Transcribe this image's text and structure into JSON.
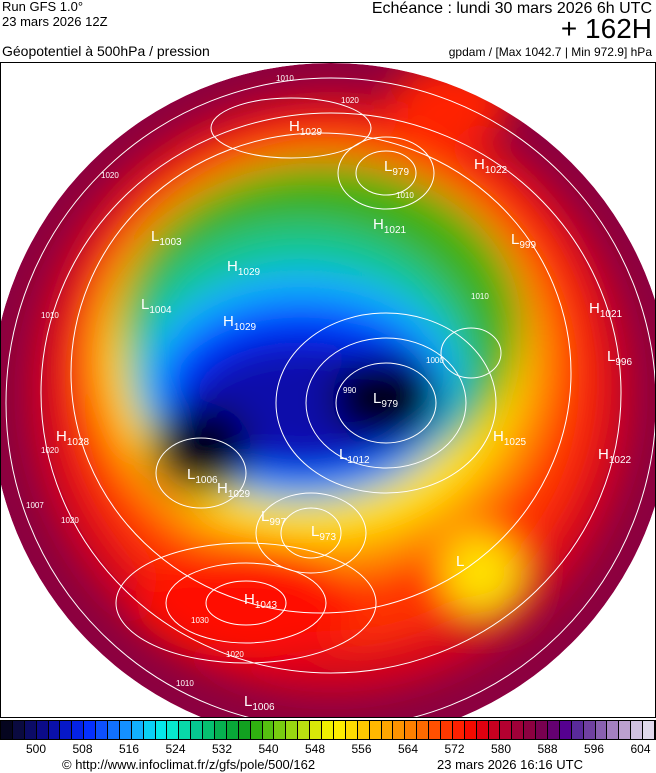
{
  "header": {
    "run": "Run GFS 1.0°",
    "run_date": "23 mars 2026 12Z",
    "parameter": "Géopotentiel à 500hPa / pression",
    "echeance": "Echéance : lundi 30 mars 2026 6h UTC",
    "lead_time": "+ 162H",
    "units": "gpdam / [Max 1042.7 | Min 972.9] hPa"
  },
  "map": {
    "projection": "polar",
    "pressure_centers": [
      {
        "type": "H",
        "value": "1029"
      },
      {
        "type": "L",
        "value": "979"
      },
      {
        "type": "H",
        "value": "1022"
      },
      {
        "type": "L",
        "value": "1003"
      },
      {
        "type": "H",
        "value": "1021"
      },
      {
        "type": "L",
        "value": "999"
      },
      {
        "type": "H",
        "value": "1029"
      },
      {
        "type": "L",
        "value": "1004"
      },
      {
        "type": "H",
        "value": "1029"
      },
      {
        "type": "H",
        "value": "1021"
      },
      {
        "type": "L",
        "value": "996"
      },
      {
        "type": "L",
        "value": "979"
      },
      {
        "type": "H",
        "value": "1025"
      },
      {
        "type": "H",
        "value": "1022"
      },
      {
        "type": "L",
        "value": "1012"
      },
      {
        "type": "H",
        "value": "1028"
      },
      {
        "type": "L",
        "value": "1006"
      },
      {
        "type": "H",
        "value": "1029"
      },
      {
        "type": "L",
        "value": "997"
      },
      {
        "type": "L",
        "value": "973"
      },
      {
        "type": "H",
        "value": "1043"
      },
      {
        "type": "L",
        "value": "1006"
      },
      {
        "type": "L",
        "value": ""
      }
    ],
    "isobar_labels": [
      "1010",
      "1020",
      "1010",
      "1010",
      "1020",
      "1010",
      "1020",
      "1007",
      "1020",
      "1010",
      "1030",
      "1020",
      "1010",
      "1000",
      "990"
    ]
  },
  "colorbar": {
    "ticks": [
      "500",
      "508",
      "516",
      "524",
      "532",
      "540",
      "548",
      "556",
      "564",
      "572",
      "580",
      "588",
      "596",
      "604"
    ],
    "colors": [
      "#05051f",
      "#0a0a40",
      "#0b0b66",
      "#0b0b88",
      "#0a10aa",
      "#0618c8",
      "#0422e6",
      "#0530ff",
      "#0d50ff",
      "#1170ff",
      "#1490ff",
      "#12b0ff",
      "#0ad0f5",
      "#05e8e8",
      "#06e8cc",
      "#08d8a8",
      "#06c890",
      "#06c070",
      "#06b050",
      "#08a838",
      "#12a020",
      "#30b010",
      "#55c010",
      "#78cc10",
      "#98d810",
      "#b8e010",
      "#d8e808",
      "#f0f000",
      "#ffee00",
      "#ffdc00",
      "#ffca00",
      "#ffb800",
      "#ffa600",
      "#ff9400",
      "#ff8000",
      "#ff6a00",
      "#ff5000",
      "#ff3800",
      "#ff2000",
      "#f50a00",
      "#e00010",
      "#c80020",
      "#b40030",
      "#a00038",
      "#8c0040",
      "#780050",
      "#640070",
      "#560090",
      "#5a2a9a",
      "#7040a0",
      "#8a60b0",
      "#a480c0",
      "#bca0d0",
      "#d0c0e0",
      "#e0d8ec"
    ]
  },
  "footer": {
    "copyright": "© http://www.infoclimat.fr/z/gfs/pole/500/162",
    "generated": "23 mars 2026 16:16 UTC"
  }
}
